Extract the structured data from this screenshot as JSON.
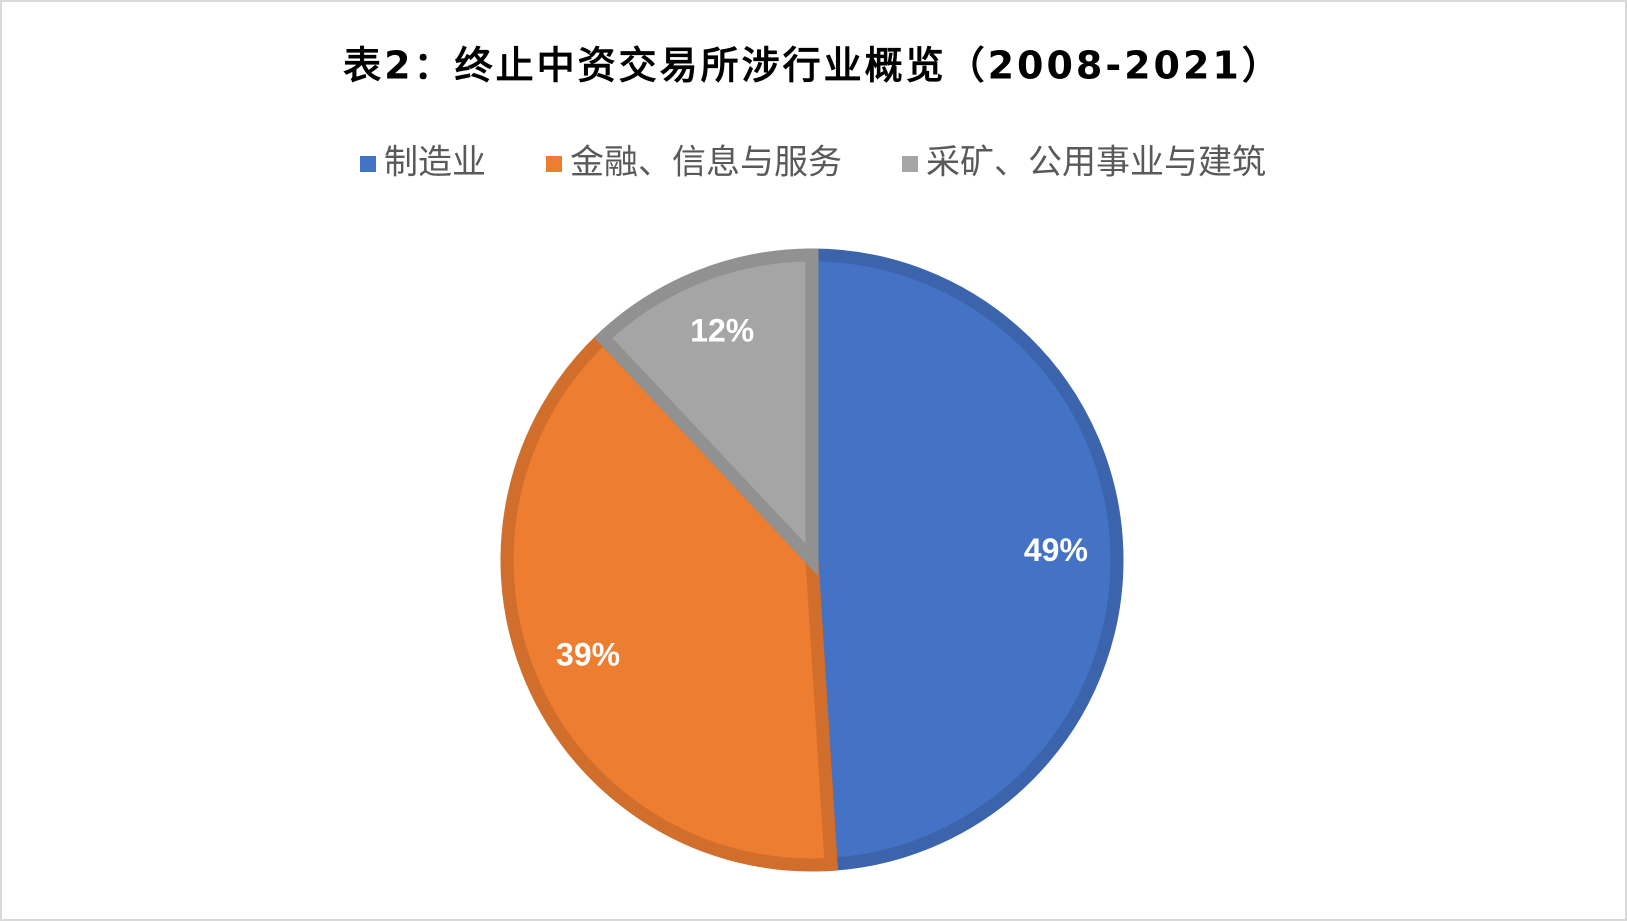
{
  "chart_data": {
    "type": "pie",
    "title": "表2：终止中资交易所涉行业概览（2008-2021）",
    "categories": [
      "制造业",
      "金融、信息与服务",
      "采矿、公用事业与建筑"
    ],
    "values": [
      49,
      39,
      12
    ],
    "value_labels": [
      "49%",
      "39%",
      "12%"
    ],
    "colors": [
      "#4472c4",
      "#ed7d31",
      "#a5a5a5"
    ],
    "legend": "top"
  }
}
